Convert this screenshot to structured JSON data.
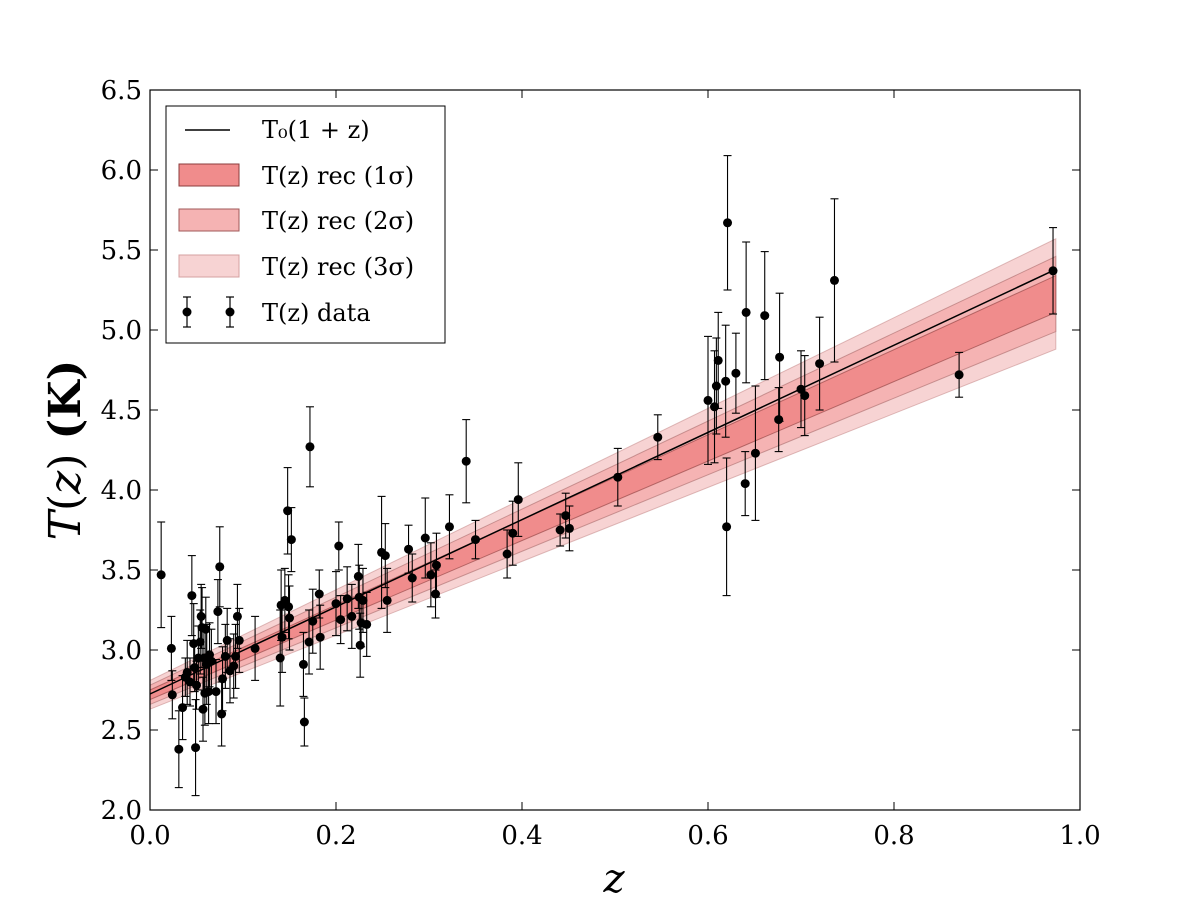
{
  "chart_data": {
    "type": "scatter",
    "title": "",
    "xlabel": "z",
    "ylabel": "T(z) (K)",
    "xlim": [
      0.0,
      1.0
    ],
    "ylim": [
      2.0,
      6.5
    ],
    "xticks": [
      "0.0",
      "0.2",
      "0.4",
      "0.6",
      "0.8",
      "1.0"
    ],
    "yticks": [
      "2.0",
      "2.5",
      "3.0",
      "3.5",
      "4.0",
      "4.5",
      "5.0",
      "5.5",
      "6.0",
      "6.5"
    ],
    "grid": false,
    "legend_position": "top-left",
    "legend": [
      "T₀(1 + z)",
      "T(z) rec (1σ)",
      "T(z) rec (2σ)",
      "T(z) rec (3σ)",
      "T(z) data"
    ],
    "model": {
      "T0": 2.725,
      "z_end": 0.974,
      "name": "T₀(1 + z)"
    },
    "bands": [
      {
        "name": "3σ",
        "color": "#f7d3d3",
        "z": [
          0.0,
          0.974
        ],
        "lower": [
          2.63,
          4.88
        ],
        "upper": [
          2.81,
          5.57
        ]
      },
      {
        "name": "2σ",
        "color": "#f5b3b3",
        "z": [
          0.0,
          0.974
        ],
        "lower": [
          2.66,
          4.99
        ],
        "upper": [
          2.78,
          5.46
        ]
      },
      {
        "name": "1σ",
        "color": "#f08c8c",
        "z": [
          0.0,
          0.974
        ],
        "lower": [
          2.69,
          5.11
        ],
        "upper": [
          2.75,
          5.34
        ]
      }
    ],
    "points": [
      {
        "z": 0.012,
        "t": 3.47,
        "e": 0.33
      },
      {
        "z": 0.023,
        "t": 3.01,
        "e": 0.2
      },
      {
        "z": 0.024,
        "t": 2.72,
        "e": 0.15
      },
      {
        "z": 0.031,
        "t": 2.38,
        "e": 0.24
      },
      {
        "z": 0.035,
        "t": 2.64,
        "e": 0.2
      },
      {
        "z": 0.038,
        "t": 2.83,
        "e": 0.12
      },
      {
        "z": 0.04,
        "t": 2.86,
        "e": 0.2
      },
      {
        "z": 0.043,
        "t": 2.8,
        "e": 0.15
      },
      {
        "z": 0.045,
        "t": 3.34,
        "e": 0.25
      },
      {
        "z": 0.047,
        "t": 3.04,
        "e": 0.25
      },
      {
        "z": 0.048,
        "t": 2.89,
        "e": 0.15
      },
      {
        "z": 0.049,
        "t": 2.39,
        "e": 0.3
      },
      {
        "z": 0.05,
        "t": 2.78,
        "e": 0.15
      },
      {
        "z": 0.052,
        "t": 2.95,
        "e": 0.2
      },
      {
        "z": 0.054,
        "t": 3.05,
        "e": 0.2
      },
      {
        "z": 0.055,
        "t": 3.21,
        "e": 0.2
      },
      {
        "z": 0.056,
        "t": 3.14,
        "e": 0.25
      },
      {
        "z": 0.057,
        "t": 2.63,
        "e": 0.2
      },
      {
        "z": 0.058,
        "t": 2.95,
        "e": 0.2
      },
      {
        "z": 0.059,
        "t": 2.73,
        "e": 0.2
      },
      {
        "z": 0.06,
        "t": 3.13,
        "e": 0.2
      },
      {
        "z": 0.061,
        "t": 2.91,
        "e": 0.25
      },
      {
        "z": 0.063,
        "t": 2.74,
        "e": 0.2
      },
      {
        "z": 0.064,
        "t": 2.97,
        "e": 0.2
      },
      {
        "z": 0.066,
        "t": 2.93,
        "e": 0.2
      },
      {
        "z": 0.071,
        "t": 2.74,
        "e": 0.2
      },
      {
        "z": 0.073,
        "t": 3.24,
        "e": 0.2
      },
      {
        "z": 0.075,
        "t": 3.52,
        "e": 0.25
      },
      {
        "z": 0.077,
        "t": 2.6,
        "e": 0.2
      },
      {
        "z": 0.078,
        "t": 2.82,
        "e": 0.2
      },
      {
        "z": 0.081,
        "t": 2.96,
        "e": 0.2
      },
      {
        "z": 0.083,
        "t": 3.06,
        "e": 0.2
      },
      {
        "z": 0.086,
        "t": 2.87,
        "e": 0.2
      },
      {
        "z": 0.09,
        "t": 2.9,
        "e": 0.2
      },
      {
        "z": 0.092,
        "t": 2.96,
        "e": 0.2
      },
      {
        "z": 0.094,
        "t": 3.21,
        "e": 0.2
      },
      {
        "z": 0.096,
        "t": 3.06,
        "e": 0.2
      },
      {
        "z": 0.113,
        "t": 3.01,
        "e": 0.2
      },
      {
        "z": 0.14,
        "t": 2.95,
        "e": 0.3
      },
      {
        "z": 0.141,
        "t": 3.28,
        "e": 0.22
      },
      {
        "z": 0.142,
        "t": 3.08,
        "e": 0.22
      },
      {
        "z": 0.145,
        "t": 3.31,
        "e": 0.2
      },
      {
        "z": 0.148,
        "t": 3.87,
        "e": 0.27
      },
      {
        "z": 0.149,
        "t": 3.27,
        "e": 0.2
      },
      {
        "z": 0.15,
        "t": 3.2,
        "e": 0.2
      },
      {
        "z": 0.152,
        "t": 3.69,
        "e": 0.2
      },
      {
        "z": 0.165,
        "t": 2.91,
        "e": 0.2
      },
      {
        "z": 0.166,
        "t": 2.55,
        "e": 0.15
      },
      {
        "z": 0.171,
        "t": 3.05,
        "e": 0.2
      },
      {
        "z": 0.172,
        "t": 4.27,
        "e": 0.25
      },
      {
        "z": 0.175,
        "t": 3.18,
        "e": 0.2
      },
      {
        "z": 0.182,
        "t": 3.35,
        "e": 0.15
      },
      {
        "z": 0.183,
        "t": 3.08,
        "e": 0.2
      },
      {
        "z": 0.2,
        "t": 3.29,
        "e": 0.2
      },
      {
        "z": 0.203,
        "t": 3.65,
        "e": 0.15
      },
      {
        "z": 0.205,
        "t": 3.19,
        "e": 0.15
      },
      {
        "z": 0.212,
        "t": 3.32,
        "e": 0.2
      },
      {
        "z": 0.217,
        "t": 3.21,
        "e": 0.2
      },
      {
        "z": 0.224,
        "t": 3.46,
        "e": 0.2
      },
      {
        "z": 0.225,
        "t": 3.33,
        "e": 0.2
      },
      {
        "z": 0.226,
        "t": 3.03,
        "e": 0.2
      },
      {
        "z": 0.227,
        "t": 3.17,
        "e": 0.15
      },
      {
        "z": 0.229,
        "t": 3.31,
        "e": 0.2
      },
      {
        "z": 0.233,
        "t": 3.16,
        "e": 0.2
      },
      {
        "z": 0.249,
        "t": 3.61,
        "e": 0.35
      },
      {
        "z": 0.253,
        "t": 3.59,
        "e": 0.2
      },
      {
        "z": 0.255,
        "t": 3.31,
        "e": 0.2
      },
      {
        "z": 0.278,
        "t": 3.63,
        "e": 0.15
      },
      {
        "z": 0.282,
        "t": 3.45,
        "e": 0.15
      },
      {
        "z": 0.296,
        "t": 3.7,
        "e": 0.25
      },
      {
        "z": 0.302,
        "t": 3.47,
        "e": 0.2
      },
      {
        "z": 0.307,
        "t": 3.35,
        "e": 0.15
      },
      {
        "z": 0.308,
        "t": 3.53,
        "e": 0.2
      },
      {
        "z": 0.322,
        "t": 3.77,
        "e": 0.2
      },
      {
        "z": 0.34,
        "t": 4.18,
        "e": 0.26
      },
      {
        "z": 0.35,
        "t": 3.69,
        "e": 0.12
      },
      {
        "z": 0.384,
        "t": 3.6,
        "e": 0.15
      },
      {
        "z": 0.39,
        "t": 3.73,
        "e": 0.2
      },
      {
        "z": 0.396,
        "t": 3.94,
        "e": 0.23
      },
      {
        "z": 0.441,
        "t": 3.75,
        "e": 0.1
      },
      {
        "z": 0.447,
        "t": 3.84,
        "e": 0.14
      },
      {
        "z": 0.451,
        "t": 3.76,
        "e": 0.14
      },
      {
        "z": 0.503,
        "t": 4.08,
        "e": 0.18
      },
      {
        "z": 0.546,
        "t": 4.33,
        "e": 0.14
      },
      {
        "z": 0.6,
        "t": 4.56,
        "e": 0.4
      },
      {
        "z": 0.607,
        "t": 4.52,
        "e": 0.35
      },
      {
        "z": 0.609,
        "t": 4.65,
        "e": 0.3
      },
      {
        "z": 0.611,
        "t": 4.81,
        "e": 0.3
      },
      {
        "z": 0.619,
        "t": 4.68,
        "e": 0.35
      },
      {
        "z": 0.62,
        "t": 3.77,
        "e": 0.43
      },
      {
        "z": 0.621,
        "t": 5.67,
        "e": 0.42
      },
      {
        "z": 0.63,
        "t": 4.73,
        "e": 0.25
      },
      {
        "z": 0.64,
        "t": 4.04,
        "e": 0.2
      },
      {
        "z": 0.641,
        "t": 5.11,
        "e": 0.44
      },
      {
        "z": 0.651,
        "t": 4.23,
        "e": 0.42
      },
      {
        "z": 0.661,
        "t": 5.09,
        "e": 0.4
      },
      {
        "z": 0.676,
        "t": 4.44,
        "e": 0.2
      },
      {
        "z": 0.677,
        "t": 4.83,
        "e": 0.4
      },
      {
        "z": 0.7,
        "t": 4.63,
        "e": 0.24
      },
      {
        "z": 0.704,
        "t": 4.59,
        "e": 0.25
      },
      {
        "z": 0.72,
        "t": 4.79,
        "e": 0.29
      },
      {
        "z": 0.736,
        "t": 5.31,
        "e": 0.51
      },
      {
        "z": 0.87,
        "t": 4.72,
        "e": 0.14
      },
      {
        "z": 0.971,
        "t": 5.37,
        "e": 0.27
      }
    ]
  }
}
